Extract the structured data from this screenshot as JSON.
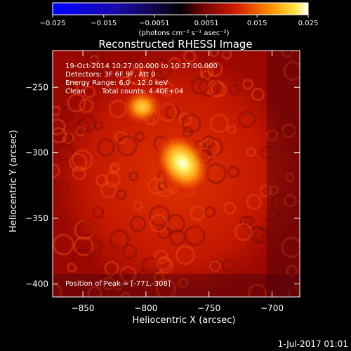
{
  "chart_data": {
    "type": "heatmap",
    "title": "Reconstructed RHESSI Image",
    "xlabel": "Heliocentric X (arcsec)",
    "ylabel": "Heliocentric Y (arcsec)",
    "xlim": [
      -874,
      -678
    ],
    "ylim": [
      -410,
      -222
    ],
    "xticks": [
      -850,
      -800,
      -750,
      -700
    ],
    "yticks": [
      -250,
      -300,
      -350,
      -400
    ],
    "colorbar": {
      "ticks": [
        -0.025,
        -0.015,
        -0.0051,
        0.0051,
        0.015,
        0.025
      ],
      "tick_labels": [
        "−0.025",
        "−0.015",
        "−0.0051",
        "0.0051",
        "0.015",
        "0.025"
      ],
      "units": "(photons cm⁻² s⁻¹ asec⁻²)",
      "range": [
        -0.025,
        0.025
      ]
    },
    "sources": [
      {
        "x": -771,
        "y": -308,
        "peak": 0.025
      },
      {
        "x": -803,
        "y": -265,
        "peak": 0.017
      }
    ],
    "annotations": [
      "19-Oct-2014 10:27:00.000 to 10:37:00.000",
      "Detectors: 3F 6F 9F, Att 0",
      "Energy Range: 6.0 - 12.0 keV",
      "Clean",
      "Total counts: 4.40E+04"
    ],
    "peak_label": "Position of Peak = [-771,-308]",
    "date_stamp": "1-Jul-2017 01:01"
  }
}
